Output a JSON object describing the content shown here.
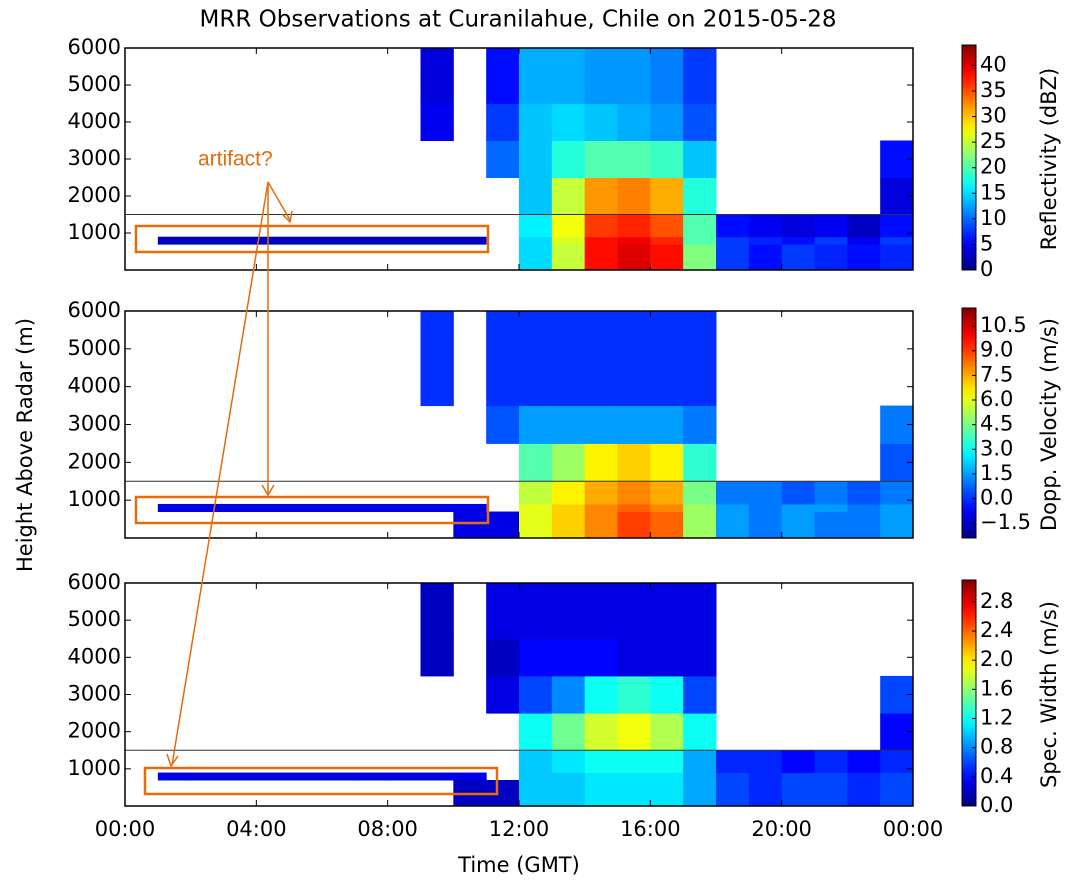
{
  "title": "MRR Observations at Curanilahue, Chile on 2015-05-28",
  "ylabel": "Height Above Radar (m)",
  "xlabel": "Time (GMT)",
  "annotation": "artifact?",
  "chart_data": [
    {
      "type": "heatmap",
      "zlabel": "Reflectivity (dBZ)",
      "x_edges": [
        0,
        1,
        2,
        3,
        4,
        5,
        6,
        7,
        8,
        9,
        10,
        11,
        12,
        13,
        14,
        15,
        16,
        17,
        18,
        19,
        20,
        21,
        22,
        23,
        24
      ],
      "y_edges": [
        0,
        700,
        900,
        1500,
        2500,
        3500,
        4500,
        6000
      ],
      "values": [
        [
          null,
          null,
          null,
          null,
          null,
          null,
          null,
          null,
          null,
          null,
          null,
          null,
          15,
          25,
          38,
          40,
          38,
          22,
          8,
          6,
          8,
          7,
          6,
          7
        ],
        [
          null,
          3,
          3,
          3,
          3,
          3,
          3,
          3,
          3,
          3,
          3,
          null,
          15,
          26,
          38,
          39,
          37,
          20,
          8,
          7,
          6,
          8,
          5,
          8
        ],
        [
          null,
          null,
          null,
          null,
          null,
          null,
          null,
          null,
          null,
          null,
          null,
          null,
          16,
          27,
          36,
          37,
          35,
          20,
          6,
          5,
          4,
          5,
          3,
          6
        ],
        [
          null,
          null,
          null,
          null,
          null,
          null,
          null,
          null,
          null,
          null,
          null,
          null,
          14,
          25,
          32,
          33,
          31,
          18,
          null,
          null,
          null,
          null,
          null,
          4
        ],
        [
          null,
          null,
          null,
          null,
          null,
          null,
          null,
          null,
          null,
          null,
          null,
          10,
          14,
          18,
          20,
          20,
          19,
          14,
          null,
          null,
          null,
          null,
          null,
          6
        ],
        [
          null,
          null,
          null,
          null,
          null,
          null,
          null,
          null,
          null,
          5,
          null,
          8,
          14,
          15,
          14,
          13,
          12,
          9,
          null,
          null,
          null,
          null,
          null,
          null
        ],
        [
          null,
          null,
          null,
          null,
          null,
          null,
          null,
          null,
          null,
          4,
          null,
          6,
          13,
          13,
          12,
          12,
          11,
          8,
          null,
          null,
          null,
          null,
          null,
          null
        ]
      ],
      "xlim": [
        0,
        24
      ],
      "xticks": [
        {
          "value": 0,
          "label": "00:00"
        },
        {
          "value": 4,
          "label": "04:00"
        },
        {
          "value": 8,
          "label": "08:00"
        },
        {
          "value": 12,
          "label": "12:00"
        },
        {
          "value": 16,
          "label": "16:00"
        },
        {
          "value": 20,
          "label": "20:00"
        },
        {
          "value": 24,
          "label": "00:00"
        }
      ],
      "ylim": [
        0,
        6000
      ],
      "yticks": [
        1000,
        2000,
        3000,
        4000,
        5000,
        6000
      ],
      "hline": 1500,
      "zlim": [
        0,
        44
      ],
      "zticks": [
        0,
        5,
        10,
        15,
        20,
        25,
        30,
        35,
        40
      ],
      "colormap": "jet"
    },
    {
      "type": "heatmap",
      "zlabel": "Dopp. Velocity (m/s)",
      "x_edges": [
        0,
        1,
        2,
        3,
        4,
        5,
        6,
        7,
        8,
        9,
        10,
        11,
        12,
        13,
        14,
        15,
        16,
        17,
        18,
        19,
        20,
        21,
        22,
        23,
        24
      ],
      "y_edges": [
        0,
        700,
        900,
        1500,
        2500,
        3500,
        4500,
        6000
      ],
      "values": [
        [
          null,
          null,
          null,
          null,
          null,
          null,
          null,
          null,
          null,
          null,
          -1,
          -1,
          6,
          7,
          8,
          9,
          8.5,
          5,
          1.5,
          1,
          1.5,
          1,
          1,
          1.5
        ],
        [
          null,
          -1,
          -1,
          -1,
          -1,
          -1,
          -1,
          -1,
          -1,
          -1,
          -1,
          null,
          6,
          7,
          8,
          8.5,
          8,
          5,
          1.5,
          1,
          1.5,
          1.5,
          1,
          1.5
        ],
        [
          null,
          null,
          null,
          null,
          null,
          null,
          null,
          null,
          null,
          null,
          null,
          null,
          5.5,
          6.5,
          7.5,
          8,
          7.5,
          4.5,
          1,
          1,
          0.5,
          1,
          0.5,
          1
        ],
        [
          null,
          null,
          null,
          null,
          null,
          null,
          null,
          null,
          null,
          null,
          null,
          null,
          4,
          5,
          6.5,
          7,
          6.5,
          3.5,
          null,
          null,
          null,
          null,
          null,
          0.5
        ],
        [
          null,
          null,
          null,
          null,
          null,
          null,
          null,
          null,
          null,
          null,
          null,
          0.5,
          1.5,
          1.5,
          1.5,
          1.5,
          1.5,
          1,
          null,
          null,
          null,
          null,
          null,
          1
        ],
        [
          null,
          null,
          null,
          null,
          null,
          null,
          null,
          null,
          null,
          0,
          null,
          0,
          0,
          0,
          0,
          0,
          0,
          0,
          null,
          null,
          null,
          null,
          null,
          null
        ],
        [
          null,
          null,
          null,
          null,
          null,
          null,
          null,
          null,
          null,
          0,
          null,
          0,
          0,
          0,
          0,
          0,
          0,
          0,
          null,
          null,
          null,
          null,
          null,
          null
        ]
      ],
      "xlim": [
        0,
        24
      ],
      "ylim": [
        0,
        6000
      ],
      "yticks": [
        1000,
        2000,
        3000,
        4000,
        5000,
        6000
      ],
      "hline": 1500,
      "zlim": [
        -2.4,
        11.6
      ],
      "zticks": [
        {
          "value": -1.5,
          "label": "−1.5"
        },
        {
          "value": 0,
          "label": "0.0"
        },
        1.5,
        {
          "value": 3,
          "label": "3.0"
        },
        4.5,
        {
          "value": 6,
          "label": "6.0"
        },
        7.5,
        {
          "value": 9,
          "label": "9.0"
        },
        10.5
      ],
      "colormap": "jet"
    },
    {
      "type": "heatmap",
      "zlabel": "Spec. Width (m/s)",
      "x_edges": [
        0,
        1,
        2,
        3,
        4,
        5,
        6,
        7,
        8,
        9,
        10,
        11,
        12,
        13,
        14,
        15,
        16,
        17,
        18,
        19,
        20,
        21,
        22,
        23,
        24
      ],
      "y_edges": [
        0,
        700,
        900,
        1500,
        2500,
        3500,
        4500,
        6000
      ],
      "values": [
        [
          null,
          null,
          null,
          null,
          null,
          null,
          null,
          null,
          null,
          null,
          0.2,
          0.2,
          1.0,
          1.0,
          1.1,
          1.1,
          1.1,
          0.9,
          0.6,
          0.5,
          0.6,
          0.6,
          0.5,
          0.6
        ],
        [
          null,
          0.3,
          0.3,
          0.3,
          0.3,
          0.3,
          0.3,
          0.3,
          0.3,
          0.3,
          0.3,
          null,
          1.0,
          1.0,
          1.1,
          1.1,
          1.1,
          0.9,
          0.6,
          0.5,
          0.6,
          0.6,
          0.5,
          0.6
        ],
        [
          null,
          null,
          null,
          null,
          null,
          null,
          null,
          null,
          null,
          null,
          null,
          null,
          1.0,
          1.1,
          1.2,
          1.2,
          1.2,
          0.9,
          0.5,
          0.5,
          0.4,
          0.5,
          0.4,
          0.5
        ],
        [
          null,
          null,
          null,
          null,
          null,
          null,
          null,
          null,
          null,
          null,
          null,
          null,
          1.2,
          1.5,
          1.8,
          1.9,
          1.7,
          1.2,
          null,
          null,
          null,
          null,
          null,
          0.4
        ],
        [
          null,
          null,
          null,
          null,
          null,
          null,
          null,
          null,
          null,
          null,
          null,
          0.3,
          0.6,
          0.8,
          1.2,
          1.3,
          1.2,
          0.6,
          null,
          null,
          null,
          null,
          null,
          0.6
        ],
        [
          null,
          null,
          null,
          null,
          null,
          null,
          null,
          null,
          null,
          0.2,
          null,
          0.2,
          0.4,
          0.4,
          0.4,
          0.3,
          0.3,
          0.3,
          null,
          null,
          null,
          null,
          null,
          null
        ],
        [
          null,
          null,
          null,
          null,
          null,
          null,
          null,
          null,
          null,
          0.2,
          null,
          0.3,
          0.3,
          0.3,
          0.3,
          0.3,
          0.3,
          0.3,
          null,
          null,
          null,
          null,
          null,
          null
        ]
      ],
      "xlim": [
        0,
        24
      ],
      "ylim": [
        0,
        6000
      ],
      "yticks": [
        1000,
        2000,
        3000,
        4000,
        5000,
        6000
      ],
      "hline": 1500,
      "zlim": [
        0,
        3.1
      ],
      "zticks": [
        {
          "value": 0,
          "label": "0.0"
        },
        0.4,
        0.8,
        1.2,
        1.6,
        {
          "value": 2,
          "label": "2.0"
        },
        2.4,
        2.8
      ],
      "colormap": "jet"
    }
  ]
}
